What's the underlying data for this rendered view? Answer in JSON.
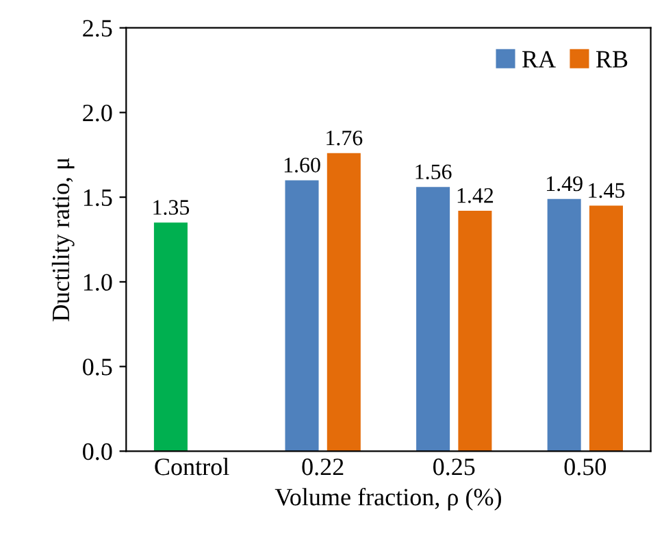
{
  "chart_data": {
    "type": "bar",
    "xlabel": "Volume fraction, ρ (%)",
    "ylabel": "Ductility ratio, μ",
    "categories": [
      "Control",
      "0.22",
      "0.25",
      "0.50"
    ],
    "series": [
      {
        "name": "RA",
        "color": "#4f81bd",
        "colors": [
          "#00b050",
          "#4f81bd",
          "#4f81bd",
          "#4f81bd"
        ],
        "values": [
          1.35,
          1.6,
          1.56,
          1.49
        ],
        "value_labels": [
          "1.35",
          "1.60",
          "1.56",
          "1.49"
        ]
      },
      {
        "name": "RB",
        "color": "#e46c0a",
        "values": [
          null,
          1.76,
          1.42,
          1.45
        ],
        "value_labels": [
          null,
          "1.76",
          "1.42",
          "1.45"
        ]
      }
    ],
    "ylim": [
      0,
      2.5
    ],
    "yticks": [
      {
        "value": 0,
        "label": "0.0"
      },
      {
        "value": 0.5,
        "label": "0.5"
      },
      {
        "value": 1.0,
        "label": "1.0"
      },
      {
        "value": 1.5,
        "label": "1.5"
      },
      {
        "value": 2.0,
        "label": "2.0"
      },
      {
        "value": 2.5,
        "label": "2.5"
      }
    ],
    "grid": false,
    "legend": "top right"
  }
}
